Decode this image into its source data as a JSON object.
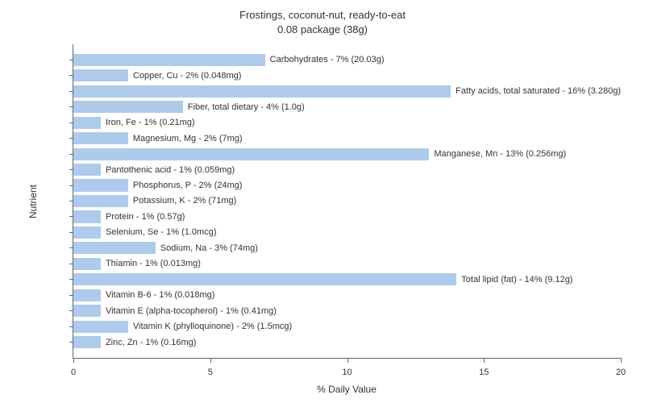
{
  "title_line1": "Frostings, coconut-nut, ready-to-eat",
  "title_line2": "0.08 package (38g)",
  "ylabel": "Nutrient",
  "xlabel": "% Daily Value",
  "xlim": [
    0,
    20
  ],
  "xticks": [
    0,
    5,
    10,
    15,
    20
  ],
  "bar_color": "#aecbeb",
  "background_color": "#ffffff",
  "axis_color": "#666666",
  "text_color": "#333333",
  "title_fontsize": 13,
  "axis_label_fontsize": 12,
  "bar_label_fontsize": 11,
  "tick_label_fontsize": 11,
  "bars": [
    {
      "label": "Carbohydrates - 7% (20.03g)",
      "value": 7
    },
    {
      "label": "Copper, Cu - 2% (0.048mg)",
      "value": 2
    },
    {
      "label": "Fatty acids, total saturated - 16% (3.280g)",
      "value": 16
    },
    {
      "label": "Fiber, total dietary - 4% (1.0g)",
      "value": 4
    },
    {
      "label": "Iron, Fe - 1% (0.21mg)",
      "value": 1
    },
    {
      "label": "Magnesium, Mg - 2% (7mg)",
      "value": 2
    },
    {
      "label": "Manganese, Mn - 13% (0.256mg)",
      "value": 13
    },
    {
      "label": "Pantothenic acid - 1% (0.059mg)",
      "value": 1
    },
    {
      "label": "Phosphorus, P - 2% (24mg)",
      "value": 2
    },
    {
      "label": "Potassium, K - 2% (71mg)",
      "value": 2
    },
    {
      "label": "Protein - 1% (0.57g)",
      "value": 1
    },
    {
      "label": "Selenium, Se - 1% (1.0mcg)",
      "value": 1
    },
    {
      "label": "Sodium, Na - 3% (74mg)",
      "value": 3
    },
    {
      "label": "Thiamin - 1% (0.013mg)",
      "value": 1
    },
    {
      "label": "Total lipid (fat) - 14% (9.12g)",
      "value": 14
    },
    {
      "label": "Vitamin B-6 - 1% (0.018mg)",
      "value": 1
    },
    {
      "label": "Vitamin E (alpha-tocopherol) - 1% (0.41mg)",
      "value": 1
    },
    {
      "label": "Vitamin K (phylloquinone) - 2% (1.5mcg)",
      "value": 2
    },
    {
      "label": "Zinc, Zn - 1% (0.16mg)",
      "value": 1
    }
  ]
}
